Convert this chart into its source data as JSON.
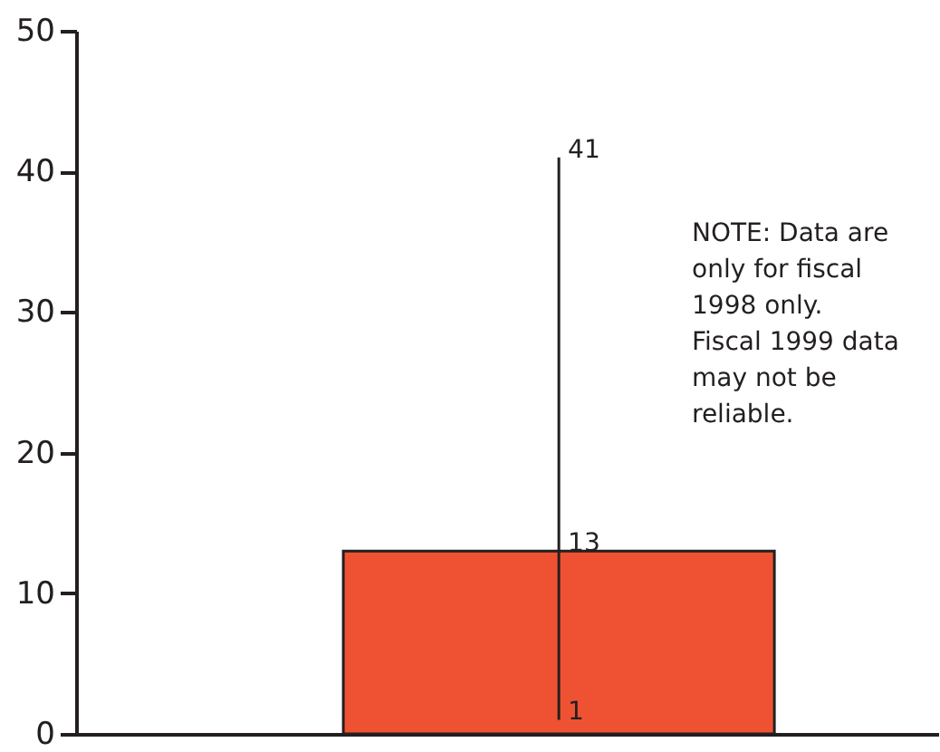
{
  "chart_data": {
    "type": "bar",
    "categories": [
      null
    ],
    "values": [
      13
    ],
    "errors": [
      [
        1,
        41
      ]
    ],
    "color": "#ef5233",
    "data_labels": true,
    "ylim": [
      0,
      50
    ],
    "yticks": [
      0,
      10,
      20,
      30,
      40,
      50
    ],
    "tick_labels": "y",
    "annotations": [
      "41",
      "1",
      "NOTE: Data are only for fiscal 1998 only. Fiscal 1999 data may not be reliable."
    ]
  }
}
